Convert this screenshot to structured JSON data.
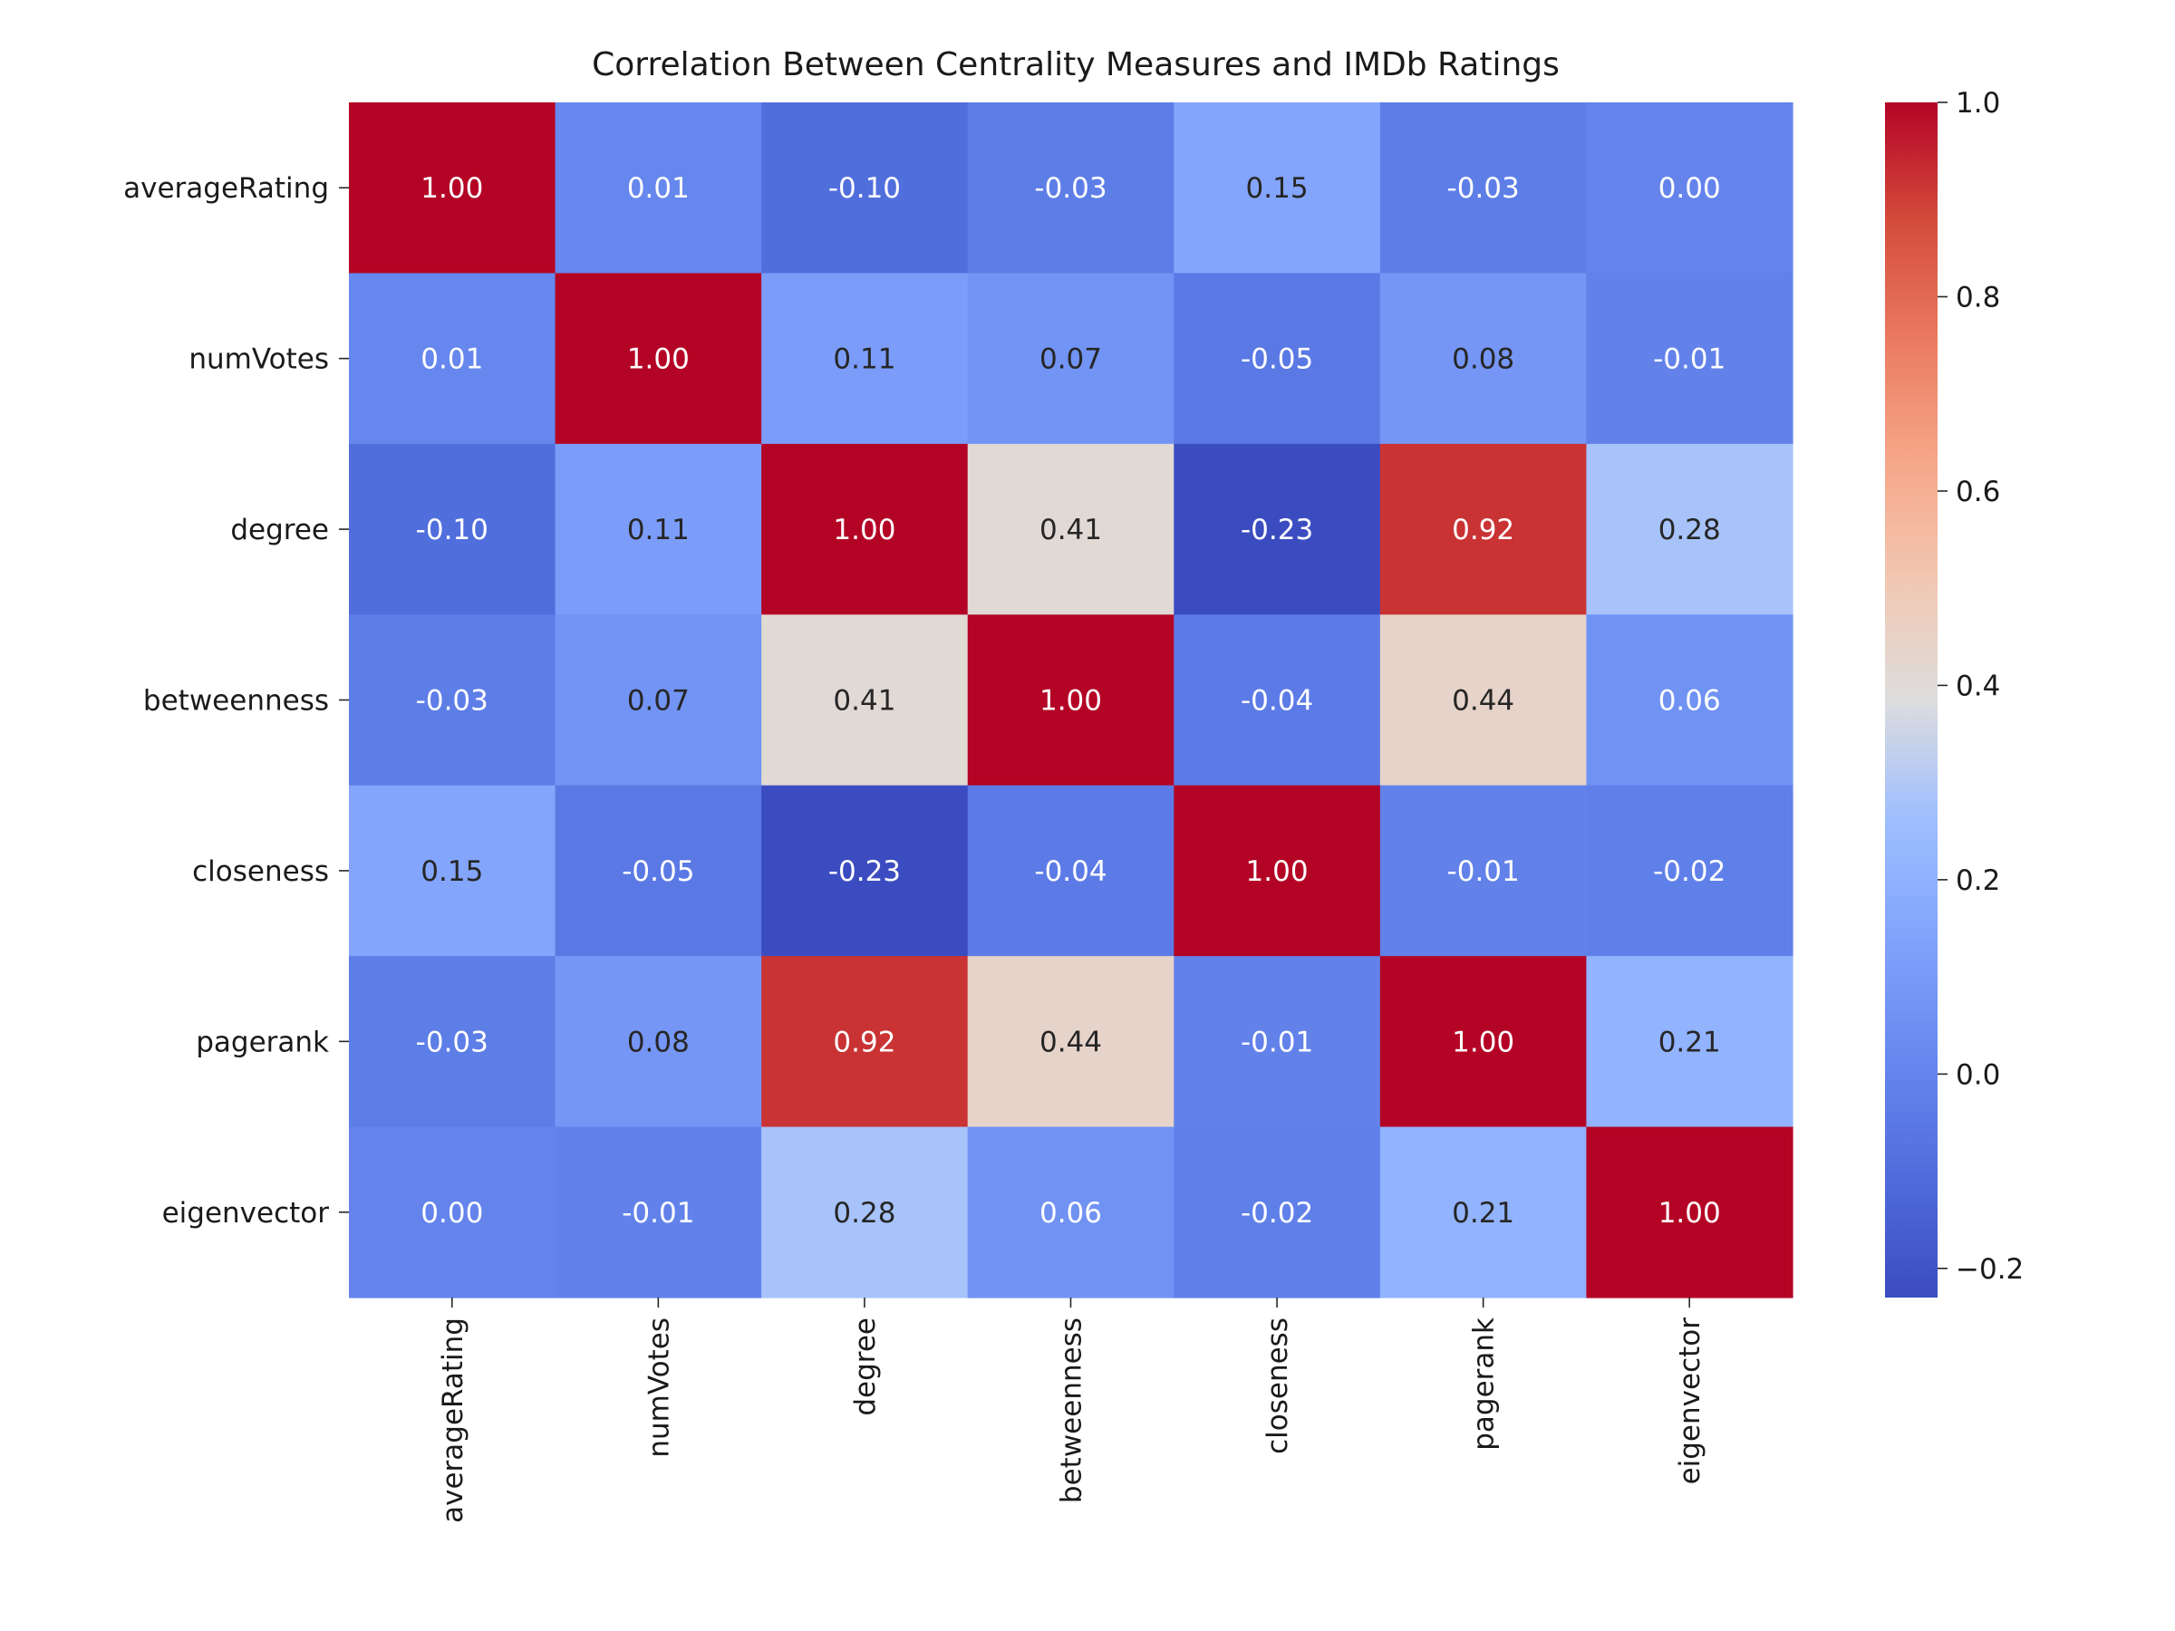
{
  "chart_data": {
    "type": "heatmap",
    "title": "Correlation Between Centrality Measures and IMDb Ratings",
    "row_labels": [
      "averageRating",
      "numVotes",
      "degree",
      "betweenness",
      "closeness",
      "pagerank",
      "eigenvector"
    ],
    "col_labels": [
      "averageRating",
      "numVotes",
      "degree",
      "betweenness",
      "closeness",
      "pagerank",
      "eigenvector"
    ],
    "values": [
      [
        1.0,
        0.01,
        -0.1,
        -0.03,
        0.15,
        -0.03,
        0.0
      ],
      [
        0.01,
        1.0,
        0.11,
        0.07,
        -0.05,
        0.08,
        -0.01
      ],
      [
        -0.1,
        0.11,
        1.0,
        0.41,
        -0.23,
        0.92,
        0.28
      ],
      [
        -0.03,
        0.07,
        0.41,
        1.0,
        -0.04,
        0.44,
        0.06
      ],
      [
        0.15,
        -0.05,
        -0.23,
        -0.04,
        1.0,
        -0.01,
        -0.02
      ],
      [
        -0.03,
        0.08,
        0.92,
        0.44,
        -0.01,
        1.0,
        0.21
      ],
      [
        0.0,
        -0.01,
        0.28,
        0.06,
        -0.02,
        0.21,
        1.0
      ]
    ],
    "annotations": [
      [
        "1.00",
        "0.01",
        "-0.10",
        "-0.03",
        "0.15",
        "-0.03",
        "0.00"
      ],
      [
        "0.01",
        "1.00",
        "0.11",
        "0.07",
        "-0.05",
        "0.08",
        "-0.01"
      ],
      [
        "-0.10",
        "0.11",
        "1.00",
        "0.41",
        "-0.23",
        "0.92",
        "0.28"
      ],
      [
        "-0.03",
        "0.07",
        "0.41",
        "1.00",
        "-0.04",
        "0.44",
        "0.06"
      ],
      [
        "0.15",
        "-0.05",
        "-0.23",
        "-0.04",
        "1.00",
        "-0.01",
        "-0.02"
      ],
      [
        "-0.03",
        "0.08",
        "0.92",
        "0.44",
        "-0.01",
        "1.00",
        "0.21"
      ],
      [
        "0.00",
        "-0.01",
        "0.28",
        "0.06",
        "-0.02",
        "0.21",
        "1.00"
      ]
    ],
    "colormap": "coolwarm",
    "vmin": -0.23,
    "vmax": 1.0,
    "colorbar": {
      "ticks": [
        -0.2,
        0.0,
        0.2,
        0.4,
        0.6,
        0.8,
        1.0
      ],
      "tick_labels": [
        "−0.2",
        "0.0",
        "0.2",
        "0.4",
        "0.6",
        "0.8",
        "1.0"
      ]
    },
    "grid": false,
    "legend": "colorbar-right"
  }
}
